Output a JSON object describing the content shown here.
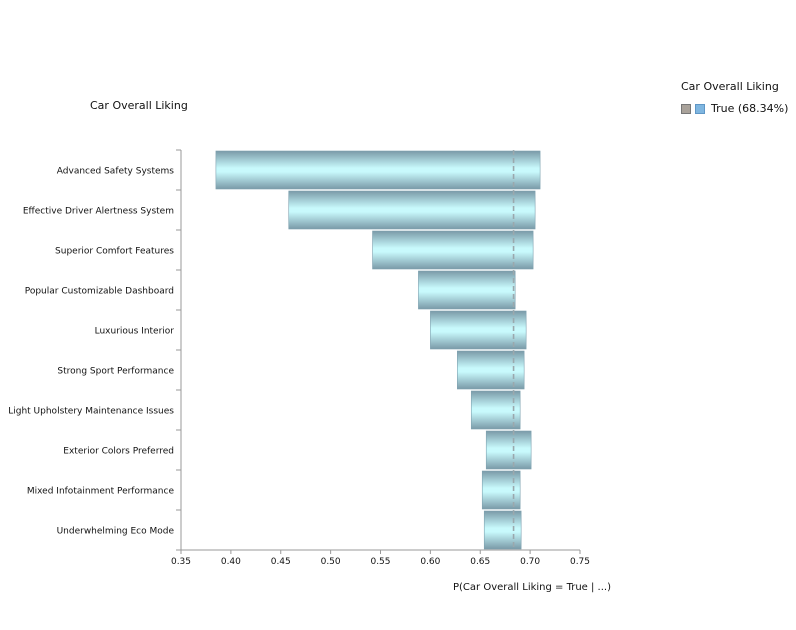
{
  "chart_data": {
    "type": "bar",
    "orientation": "horizontal",
    "title": "Car Overall Liking",
    "xlabel": "P(Car Overall Liking = True | ...)",
    "ylabel": "",
    "xlim": [
      0.35,
      0.75
    ],
    "x_ticks": [
      "0.35",
      "0.40",
      "0.45",
      "0.50",
      "0.55",
      "0.60",
      "0.65",
      "0.70",
      "0.75"
    ],
    "baseline": 0.6834,
    "categories": [
      "Advanced Safety Systems",
      "Effective Driver Alertness System",
      "Superior Comfort Features",
      "Popular Customizable Dashboard",
      "Luxurious Interior",
      "Strong Sport Performance",
      "Light Upholstery Maintenance Issues",
      "Exterior Colors Preferred",
      "Mixed Infotainment Performance",
      "Underwhelming Eco Mode"
    ],
    "ranges": [
      [
        0.385,
        0.71
      ],
      [
        0.458,
        0.705
      ],
      [
        0.542,
        0.703
      ],
      [
        0.588,
        0.685
      ],
      [
        0.6,
        0.696
      ],
      [
        0.627,
        0.694
      ],
      [
        0.641,
        0.69
      ],
      [
        0.656,
        0.701
      ],
      [
        0.652,
        0.69
      ],
      [
        0.654,
        0.691
      ]
    ]
  },
  "legend": {
    "title": "Car Overall Liking",
    "entry": "True (68.34%)"
  },
  "colors": {
    "bar_edge": "#7fa2b0",
    "bar_mid": "#c8f7fb",
    "axis": "#999999",
    "baseline": "#9aa8ad"
  }
}
